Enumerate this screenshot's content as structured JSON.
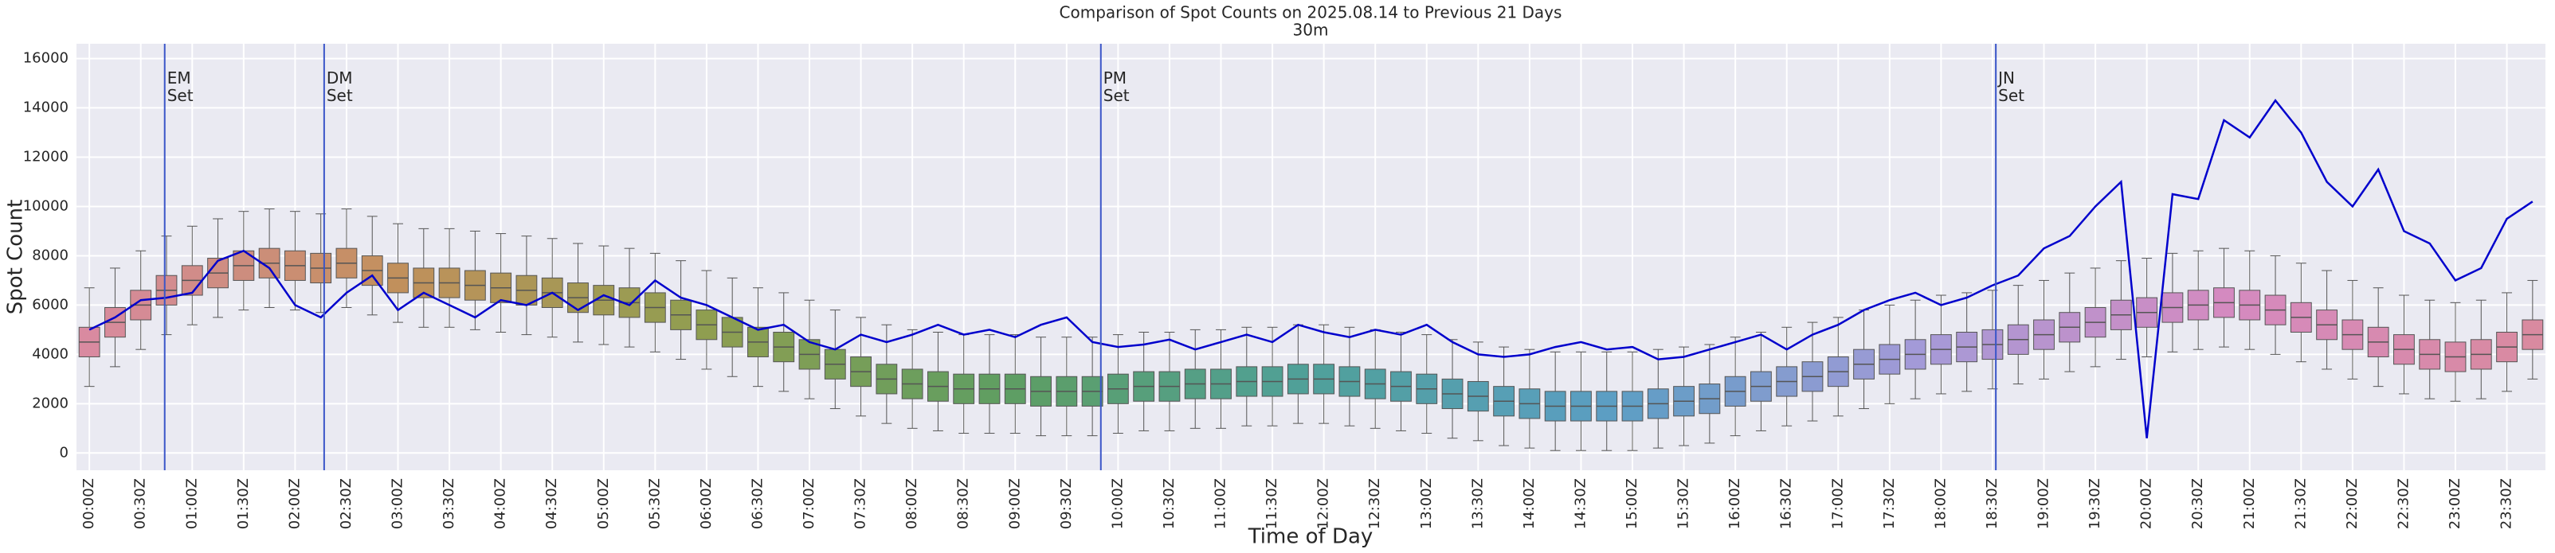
{
  "chart_data": {
    "type": "boxplot",
    "title": "Comparison of Spot Counts on 2025.08.14 to Previous 21 Days",
    "subtitle": "30m",
    "x_label": "Time of Day",
    "y_label": "Spot Count",
    "categories": [
      "00:00Z",
      null,
      "00:30Z",
      null,
      "01:00Z",
      null,
      "01:30Z",
      null,
      "02:00Z",
      null,
      "02:30Z",
      null,
      "03:00Z",
      null,
      "03:30Z",
      null,
      "04:00Z",
      null,
      "04:30Z",
      null,
      "05:00Z",
      null,
      "05:30Z",
      null,
      "06:00Z",
      null,
      "06:30Z",
      null,
      "07:00Z",
      null,
      "07:30Z",
      null,
      "08:00Z",
      null,
      "08:30Z",
      null,
      "09:00Z",
      null,
      "09:30Z",
      null,
      "10:00Z",
      null,
      "10:30Z",
      null,
      "11:00Z",
      null,
      "11:30Z",
      null,
      "12:00Z",
      null,
      "12:30Z",
      null,
      "13:00Z",
      null,
      "13:30Z",
      null,
      "14:00Z",
      null,
      "14:30Z",
      null,
      "15:00Z",
      null,
      "15:30Z",
      null,
      "16:00Z",
      null,
      "16:30Z",
      null,
      "17:00Z",
      null,
      "17:30Z",
      null,
      "18:00Z",
      null,
      "18:30Z",
      null,
      "19:00Z",
      null,
      "19:30Z",
      null,
      "20:00Z",
      null,
      "20:30Z",
      null,
      "21:00Z",
      null,
      "21:30Z",
      null,
      "22:00Z",
      null,
      "22:30Z",
      null,
      "23:00Z",
      null,
      "23:30Z",
      null
    ],
    "boxes": {
      "whislo": [
        2700,
        3500,
        4200,
        4800,
        5200,
        5500,
        5800,
        5900,
        5800,
        5700,
        5900,
        5600,
        5300,
        5100,
        5100,
        5000,
        4900,
        4800,
        4700,
        4500,
        4400,
        4300,
        4100,
        3800,
        3400,
        3100,
        2700,
        2500,
        2200,
        1800,
        1500,
        1200,
        1000,
        900,
        800,
        800,
        800,
        700,
        700,
        700,
        800,
        900,
        900,
        1000,
        1000,
        1100,
        1100,
        1200,
        1200,
        1100,
        1000,
        900,
        800,
        600,
        500,
        300,
        200,
        100,
        100,
        100,
        100,
        200,
        300,
        400,
        700,
        900,
        1100,
        1300,
        1500,
        1800,
        2000,
        2200,
        2400,
        2500,
        2600,
        2800,
        3000,
        3300,
        3500,
        3800,
        3900,
        4100,
        4200,
        4300,
        4200,
        4000,
        3700,
        3400,
        3000,
        2700,
        2400,
        2200,
        2100,
        2200,
        2500,
        3000
      ],
      "q1": [
        3900,
        4700,
        5400,
        6000,
        6400,
        6700,
        7000,
        7100,
        7000,
        6900,
        7100,
        6800,
        6500,
        6300,
        6300,
        6200,
        6100,
        6000,
        5900,
        5700,
        5600,
        5500,
        5300,
        5000,
        4600,
        4300,
        3900,
        3700,
        3400,
        3000,
        2700,
        2400,
        2200,
        2100,
        2000,
        2000,
        2000,
        1900,
        1900,
        1900,
        2000,
        2100,
        2100,
        2200,
        2200,
        2300,
        2300,
        2400,
        2400,
        2300,
        2200,
        2100,
        2000,
        1800,
        1700,
        1500,
        1400,
        1300,
        1300,
        1300,
        1300,
        1400,
        1500,
        1600,
        1900,
        2100,
        2300,
        2500,
        2700,
        3000,
        3200,
        3400,
        3600,
        3700,
        3800,
        4000,
        4200,
        4500,
        4700,
        5000,
        5100,
        5300,
        5400,
        5500,
        5400,
        5200,
        4900,
        4600,
        4200,
        3900,
        3600,
        3400,
        3300,
        3400,
        3700,
        4200
      ],
      "median": [
        4500,
        5300,
        6000,
        6600,
        7000,
        7300,
        7600,
        7700,
        7600,
        7500,
        7700,
        7400,
        7100,
        6900,
        6900,
        6800,
        6700,
        6600,
        6500,
        6300,
        6200,
        6100,
        5900,
        5600,
        5200,
        4900,
        4500,
        4300,
        4000,
        3600,
        3300,
        3000,
        2800,
        2700,
        2600,
        2600,
        2600,
        2500,
        2500,
        2500,
        2600,
        2700,
        2700,
        2800,
        2800,
        2900,
        2900,
        3000,
        3000,
        2900,
        2800,
        2700,
        2600,
        2400,
        2300,
        2100,
        2000,
        1900,
        1900,
        1900,
        1900,
        2000,
        2100,
        2200,
        2500,
        2700,
        2900,
        3100,
        3300,
        3600,
        3800,
        4000,
        4200,
        4300,
        4400,
        4600,
        4800,
        5100,
        5300,
        5600,
        5700,
        5900,
        6000,
        6100,
        6000,
        5800,
        5500,
        5200,
        4800,
        4500,
        4200,
        4000,
        3900,
        4000,
        4300,
        4800
      ],
      "q3": [
        5100,
        5900,
        6600,
        7200,
        7600,
        7900,
        8200,
        8300,
        8200,
        8100,
        8300,
        8000,
        7700,
        7500,
        7500,
        7400,
        7300,
        7200,
        7100,
        6900,
        6800,
        6700,
        6500,
        6200,
        5800,
        5500,
        5100,
        4900,
        4600,
        4200,
        3900,
        3600,
        3400,
        3300,
        3200,
        3200,
        3200,
        3100,
        3100,
        3100,
        3200,
        3300,
        3300,
        3400,
        3400,
        3500,
        3500,
        3600,
        3600,
        3500,
        3400,
        3300,
        3200,
        3000,
        2900,
        2700,
        2600,
        2500,
        2500,
        2500,
        2500,
        2600,
        2700,
        2800,
        3100,
        3300,
        3500,
        3700,
        3900,
        4200,
        4400,
        4600,
        4800,
        4900,
        5000,
        5200,
        5400,
        5700,
        5900,
        6200,
        6300,
        6500,
        6600,
        6700,
        6600,
        6400,
        6100,
        5800,
        5400,
        5100,
        4800,
        4600,
        4500,
        4600,
        4900,
        5400
      ],
      "whishi": [
        6700,
        7500,
        8200,
        8800,
        9200,
        9500,
        9800,
        9900,
        9800,
        9700,
        9900,
        9600,
        9300,
        9100,
        9100,
        9000,
        8900,
        8800,
        8700,
        8500,
        8400,
        8300,
        8100,
        7800,
        7400,
        7100,
        6700,
        6500,
        6200,
        5800,
        5500,
        5200,
        5000,
        4900,
        4800,
        4800,
        4800,
        4700,
        4700,
        4700,
        4800,
        4900,
        4900,
        5000,
        5000,
        5100,
        5100,
        5200,
        5200,
        5100,
        5000,
        4900,
        4800,
        4600,
        4500,
        4300,
        4200,
        4100,
        4100,
        4100,
        4100,
        4200,
        4300,
        4400,
        4700,
        4900,
        5100,
        5300,
        5500,
        5800,
        6000,
        6200,
        6400,
        6500,
        6600,
        6800,
        7000,
        7300,
        7500,
        7800,
        7900,
        8100,
        8200,
        8300,
        8200,
        8000,
        7700,
        7400,
        7000,
        6700,
        6400,
        6200,
        6100,
        6200,
        6500,
        7000
      ]
    },
    "palette": [
      "#d98aa0",
      "#c2905c",
      "#909e50",
      "#5e9e62",
      "#4fa09a",
      "#5c9ec4",
      "#a59ad8",
      "#d58ac0",
      "#d98aa0"
    ],
    "box_edge_color": "#555555",
    "line": {
      "color": "#0000cc",
      "values": [
        5000,
        5500,
        6200,
        6300,
        6500,
        7800,
        8200,
        7500,
        6000,
        5500,
        6500,
        7200,
        5800,
        6500,
        6000,
        5500,
        6200,
        6000,
        6500,
        5800,
        6400,
        6000,
        7000,
        6300,
        6000,
        5500,
        5000,
        5200,
        4500,
        4200,
        4800,
        4500,
        4800,
        5200,
        4800,
        5000,
        4700,
        5200,
        5500,
        4500,
        4300,
        4400,
        4600,
        4200,
        4500,
        4800,
        4500,
        5200,
        4900,
        4700,
        5000,
        4800,
        5200,
        4500,
        4000,
        3900,
        4000,
        4300,
        4500,
        4200,
        4300,
        3800,
        3900,
        4200,
        4500,
        4800,
        4200,
        4800,
        5200,
        5800,
        6200,
        6500,
        6000,
        6300,
        6800,
        7200,
        8300,
        8800,
        10000,
        11000,
        600,
        10500,
        10300,
        13500,
        12800,
        14300,
        13000,
        11000,
        10000,
        11500,
        9000,
        8500,
        7000,
        7500,
        9500,
        10200
      ]
    },
    "vlines": [
      {
        "at": 2.93,
        "label": [
          "EM",
          "Set"
        ]
      },
      {
        "at": 9.13,
        "label": [
          "DM",
          "Set"
        ]
      },
      {
        "at": 39.33,
        "label": [
          "PM",
          "Set"
        ]
      },
      {
        "at": 74.13,
        "label": [
          "JN",
          "Set"
        ]
      }
    ],
    "vline_color": "#3a55c8",
    "ylim": [
      -700,
      16600
    ],
    "yticks": [
      0,
      2000,
      4000,
      6000,
      8000,
      10000,
      12000,
      14000,
      16000
    ],
    "grid": true,
    "background": "#eaeaf2"
  }
}
